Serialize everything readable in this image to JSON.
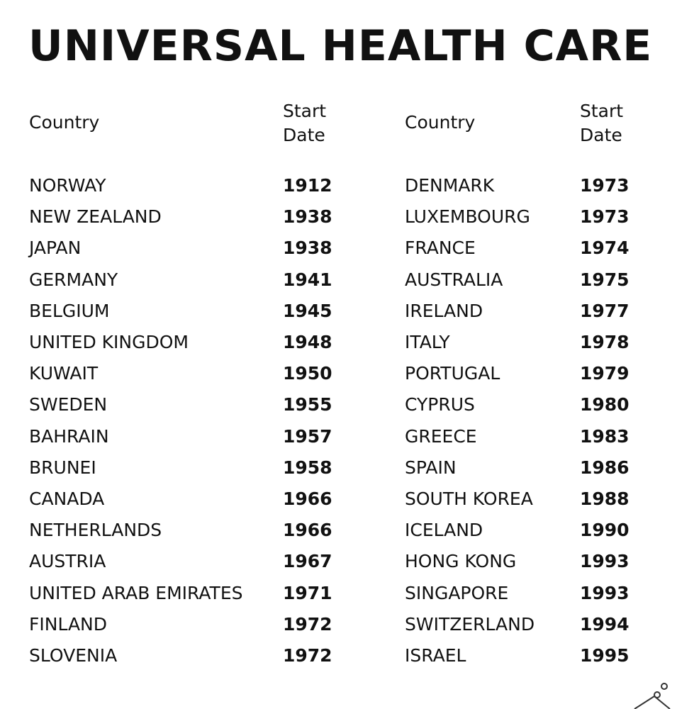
{
  "title": "UNIVERSAL HEALTH CARE",
  "tables": [
    {
      "header": [
        "Country",
        "Start Date"
      ],
      "rows": [
        [
          "NORWAY",
          1912
        ],
        [
          "NEW ZEALAND",
          1938
        ],
        [
          "JAPAN",
          1938
        ],
        [
          "GERMANY",
          1941
        ],
        [
          "BELGIUM",
          1945
        ],
        [
          "UNITED KINGDOM",
          1948
        ],
        [
          "KUWAIT",
          1950
        ],
        [
          "SWEDEN",
          1955
        ],
        [
          "BAHRAIN",
          1957
        ],
        [
          "BRUNEI",
          1958
        ],
        [
          "CANADA",
          1966
        ],
        [
          "NETHERLANDS",
          1966
        ],
        [
          "AUSTRIA",
          1967
        ],
        [
          "UNITED ARAB EMIRATES",
          1971
        ],
        [
          "FINLAND",
          1972
        ],
        [
          "SLOVENIA",
          1972
        ]
      ]
    },
    {
      "header": [
        "Country",
        "Start Date"
      ],
      "rows": [
        [
          "DENMARK",
          1973
        ],
        [
          "LUXEMBOURG",
          1973
        ],
        [
          "FRANCE",
          1974
        ],
        [
          "AUSTRALIA",
          1975
        ],
        [
          "IRELAND",
          1977
        ],
        [
          "ITALY",
          1978
        ],
        [
          "PORTUGAL",
          1979
        ],
        [
          "CYPRUS",
          1980
        ],
        [
          "GREECE",
          1983
        ],
        [
          "SPAIN",
          1986
        ],
        [
          "SOUTH KOREA",
          1988
        ],
        [
          "ICELAND",
          1990
        ],
        [
          "HONG KONG",
          1993
        ],
        [
          "SINGAPORE",
          1993
        ],
        [
          "SWITZERLAND",
          1994
        ],
        [
          "ISRAEL",
          1995
        ]
      ]
    }
  ]
}
